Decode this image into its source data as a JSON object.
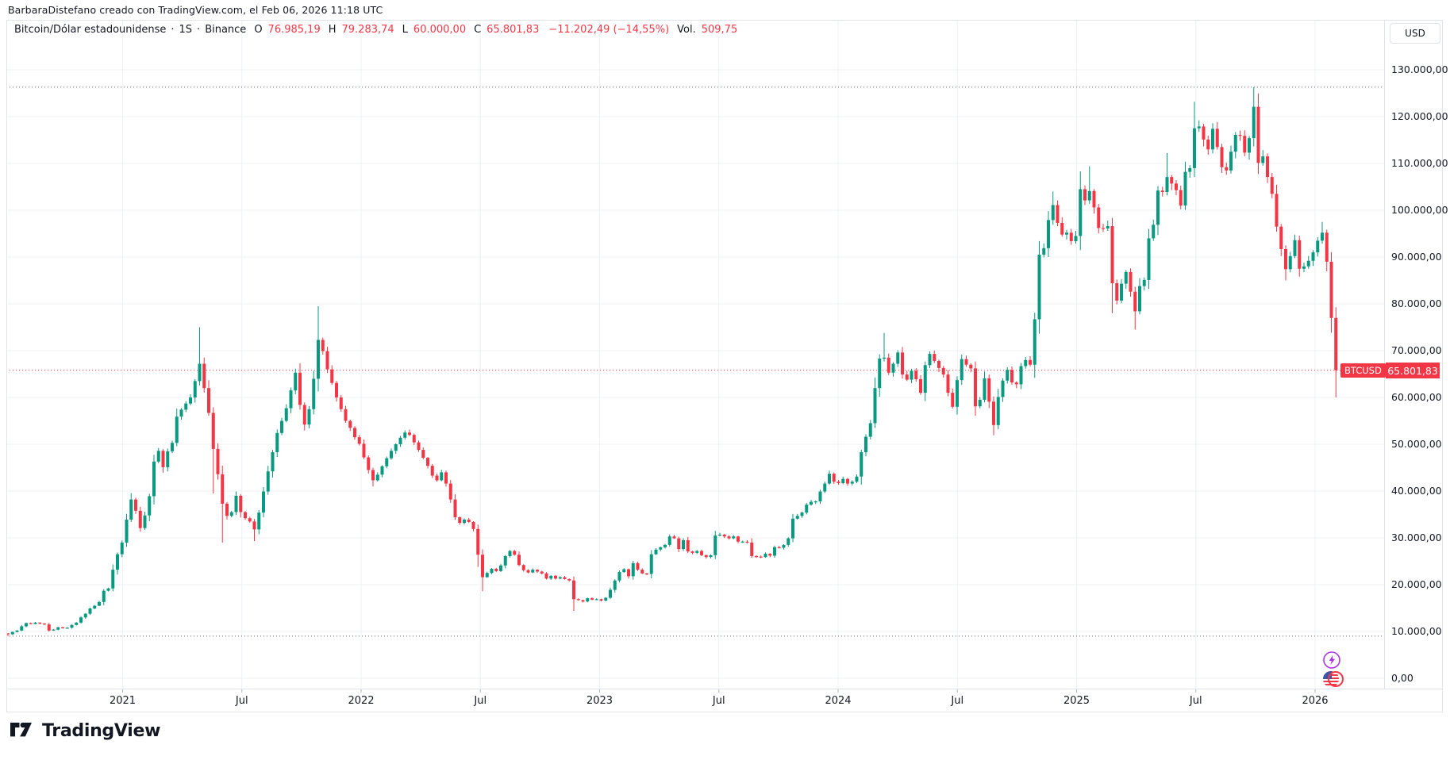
{
  "attribution": "BarbaraDistefano creado con TradingView.com, el Feb 06, 2026 11:18 UTC",
  "legend": {
    "symbol": "Bitcoin/Dólar estadounidense",
    "sep": "·",
    "interval": "1S",
    "exchange": "Binance",
    "o_label": "O",
    "o_value": "76.985,19",
    "h_label": "H",
    "h_value": "79.283,74",
    "l_label": "L",
    "l_value": "60.000,00",
    "c_label": "C",
    "c_value": "65.801,83",
    "change": "−11.202,49 (−14,55%)",
    "vol_label": "Vol.",
    "vol_value": "509,75"
  },
  "axis": {
    "currency": "USD",
    "price_ticks": [
      {
        "label": "130.000,00",
        "value": 130
      },
      {
        "label": "120.000,00",
        "value": 120
      },
      {
        "label": "110.000,00",
        "value": 110
      },
      {
        "label": "100.000,00",
        "value": 100
      },
      {
        "label": "90.000,00",
        "value": 90
      },
      {
        "label": "80.000,00",
        "value": 80
      },
      {
        "label": "70.000,00",
        "value": 70
      },
      {
        "label": "60.000,00",
        "value": 60
      },
      {
        "label": "50.000,00",
        "value": 50
      },
      {
        "label": "40.000,00",
        "value": 40
      },
      {
        "label": "30.000,00",
        "value": 30
      },
      {
        "label": "20.000,00",
        "value": 20
      },
      {
        "label": "10.000,00",
        "value": 10
      },
      {
        "label": "0,00",
        "value": 0
      }
    ],
    "time_ticks": [
      "2021",
      "Jul",
      "2022",
      "Jul",
      "2023",
      "Jul",
      "2024",
      "Jul",
      "2025",
      "Jul",
      "2026"
    ]
  },
  "price_tag": {
    "symbol": "BTCUSD",
    "price": "65.801,83"
  },
  "logo": {
    "text": "TradingView"
  },
  "colors": {
    "up": "#089981",
    "down": "#f23645",
    "grid": "#eef0f5",
    "axis_border": "#e0e3eb",
    "text": "#131722",
    "dotted_gray": "#63666e",
    "dotted_red": "#f23645",
    "purple": "#a835df"
  },
  "chart_data": {
    "type": "candlestick",
    "title": "Bitcoin/Dólar estadounidense · 1S · Binance",
    "symbol": "BTCUSD",
    "interval": "weekly",
    "exchange": "Binance",
    "currency": "USD",
    "xrange": [
      "Jul 2020",
      "Feb 2026"
    ],
    "ylim_usd": [
      0,
      135000
    ],
    "visible_high_k": 126.3,
    "visible_low_k": 9.0,
    "current_price_usd": 65801.83,
    "last_candle_usd": {
      "o": 76985.19,
      "h": 79283.74,
      "l": 60000.0,
      "c": 65801.83
    },
    "change_usd": -11202.49,
    "change_pct": -14.55,
    "volume": 509.75,
    "first_open_k": 9.6,
    "closes_k": [
      9.4,
      9.9,
      10.2,
      11.1,
      11.8,
      11.6,
      11.9,
      11.7,
      11.5,
      10.2,
      10.4,
      10.9,
      10.7,
      10.8,
      11.4,
      11.9,
      13.0,
      13.8,
      14.9,
      15.5,
      16.3,
      18.7,
      19.2,
      23.2,
      26.5,
      29.0,
      33.9,
      38.2,
      35.8,
      32.1,
      34.8,
      38.9,
      46.3,
      48.6,
      45.1,
      48.5,
      50.3,
      55.9,
      57.4,
      58.7,
      60.0,
      63.5,
      67.2,
      62.0,
      56.7,
      49.0,
      43.6,
      37.3,
      34.7,
      35.5,
      39.0,
      35.5,
      34.2,
      33.5,
      31.8,
      35.4,
      39.9,
      44.2,
      48.3,
      52.4,
      55.0,
      57.7,
      61.5,
      65.3,
      58.4,
      54.2,
      57.5,
      64.0,
      72.3,
      69.9,
      66.0,
      63.1,
      60.0,
      57.5,
      55.0,
      53.5,
      51.5,
      50.1,
      47.2,
      44.5,
      42.3,
      43.5,
      45.3,
      47.0,
      48.6,
      50.0,
      51.4,
      52.5,
      52.0,
      50.4,
      48.8,
      47.1,
      45.4,
      43.3,
      42.3,
      44.0,
      41.6,
      38.2,
      34.4,
      33.2,
      33.9,
      33.4,
      31.9,
      26.4,
      21.6,
      22.5,
      23.4,
      22.9,
      24.1,
      26.1,
      27.2,
      26.4,
      24.2,
      23.1,
      22.6,
      23.2,
      22.8,
      22.4,
      21.3,
      21.9,
      21.3,
      21.6,
      21.2,
      20.9,
      16.9,
      16.7,
      16.4,
      17.1,
      16.8,
      16.9,
      16.6,
      17.2,
      18.9,
      20.9,
      22.7,
      23.3,
      21.8,
      24.6,
      23.2,
      22.4,
      22.3,
      26.5,
      27.5,
      28.0,
      28.5,
      30.3,
      29.9,
      27.6,
      29.5,
      27.1,
      26.8,
      27.2,
      26.3,
      25.9,
      26.3,
      30.5,
      30.7,
      30.3,
      29.9,
      30.3,
      29.2,
      29.2,
      29.0,
      26.1,
      26.0,
      25.9,
      26.6,
      26.2,
      28.0,
      27.9,
      28.5,
      29.9,
      34.1,
      34.7,
      35.4,
      37.1,
      37.7,
      37.8,
      39.9,
      41.6,
      43.7,
      42.0,
      41.7,
      42.6,
      41.6,
      42.0,
      43.1,
      48.3,
      51.6,
      54.5,
      62.0,
      68.3,
      68.5,
      65.3,
      67.2,
      69.6,
      64.9,
      63.8,
      65.7,
      63.9,
      61.0,
      66.9,
      69.3,
      67.8,
      66.3,
      64.9,
      61.0,
      58.0,
      63.7,
      68.2,
      67.0,
      66.2,
      58.1,
      59.5,
      64.1,
      59.1,
      54.1,
      60.1,
      63.6,
      65.9,
      63.2,
      62.8,
      66.7,
      68.0,
      67.0,
      76.7,
      90.5,
      91.9,
      97.9,
      101.1,
      97.3,
      94.8,
      95.2,
      93.4,
      94.5,
      104.5,
      102.1,
      104.1,
      100.6,
      96.2,
      96.1,
      96.6,
      84.4,
      80.7,
      84.3,
      86.8,
      82.6,
      78.4,
      83.8,
      85.1,
      94.0,
      96.9,
      104.2,
      103.9,
      107.1,
      105.7,
      104.3,
      101.0,
      108.2,
      109.0,
      117.5,
      117.9,
      115.1,
      113.0,
      117.4,
      113.5,
      109.2,
      108.5,
      112.5,
      116.1,
      115.9,
      112.3,
      115.4,
      122.1,
      110.1,
      111.5,
      107.1,
      103.5,
      96.5,
      91.7,
      87.4,
      90.2,
      93.6,
      87.5,
      88.0,
      89.2,
      91.0,
      93.5,
      95.2,
      89.0,
      76.985,
      65.8018
    ],
    "wick_overrides_k": {
      "0": {
        "l": 9.0
      },
      "42": {
        "h": 75.0
      },
      "45": {
        "l": 39.5
      },
      "47": {
        "l": 29.0
      },
      "54": {
        "l": 29.3
      },
      "68": {
        "h": 79.5
      },
      "80": {
        "l": 41.0
      },
      "103": {
        "l": 23.8
      },
      "104": {
        "l": 18.6
      },
      "124": {
        "l": 14.4
      },
      "192": {
        "h": 73.8
      },
      "216": {
        "l": 51.9
      },
      "228": {
        "h": 99.8
      },
      "229": {
        "h": 104.0
      },
      "235": {
        "h": 108.3
      },
      "237": {
        "h": 109.4
      },
      "242": {
        "l": 78.0
      },
      "247": {
        "l": 74.5
      },
      "254": {
        "h": 112.2
      },
      "260": {
        "h": 123.2
      },
      "273": {
        "h": 126.3
      },
      "280": {
        "l": 85.0
      },
      "288": {
        "h": 97.5
      },
      "291": {
        "h": 79.2837,
        "l": 60.0
      }
    }
  }
}
